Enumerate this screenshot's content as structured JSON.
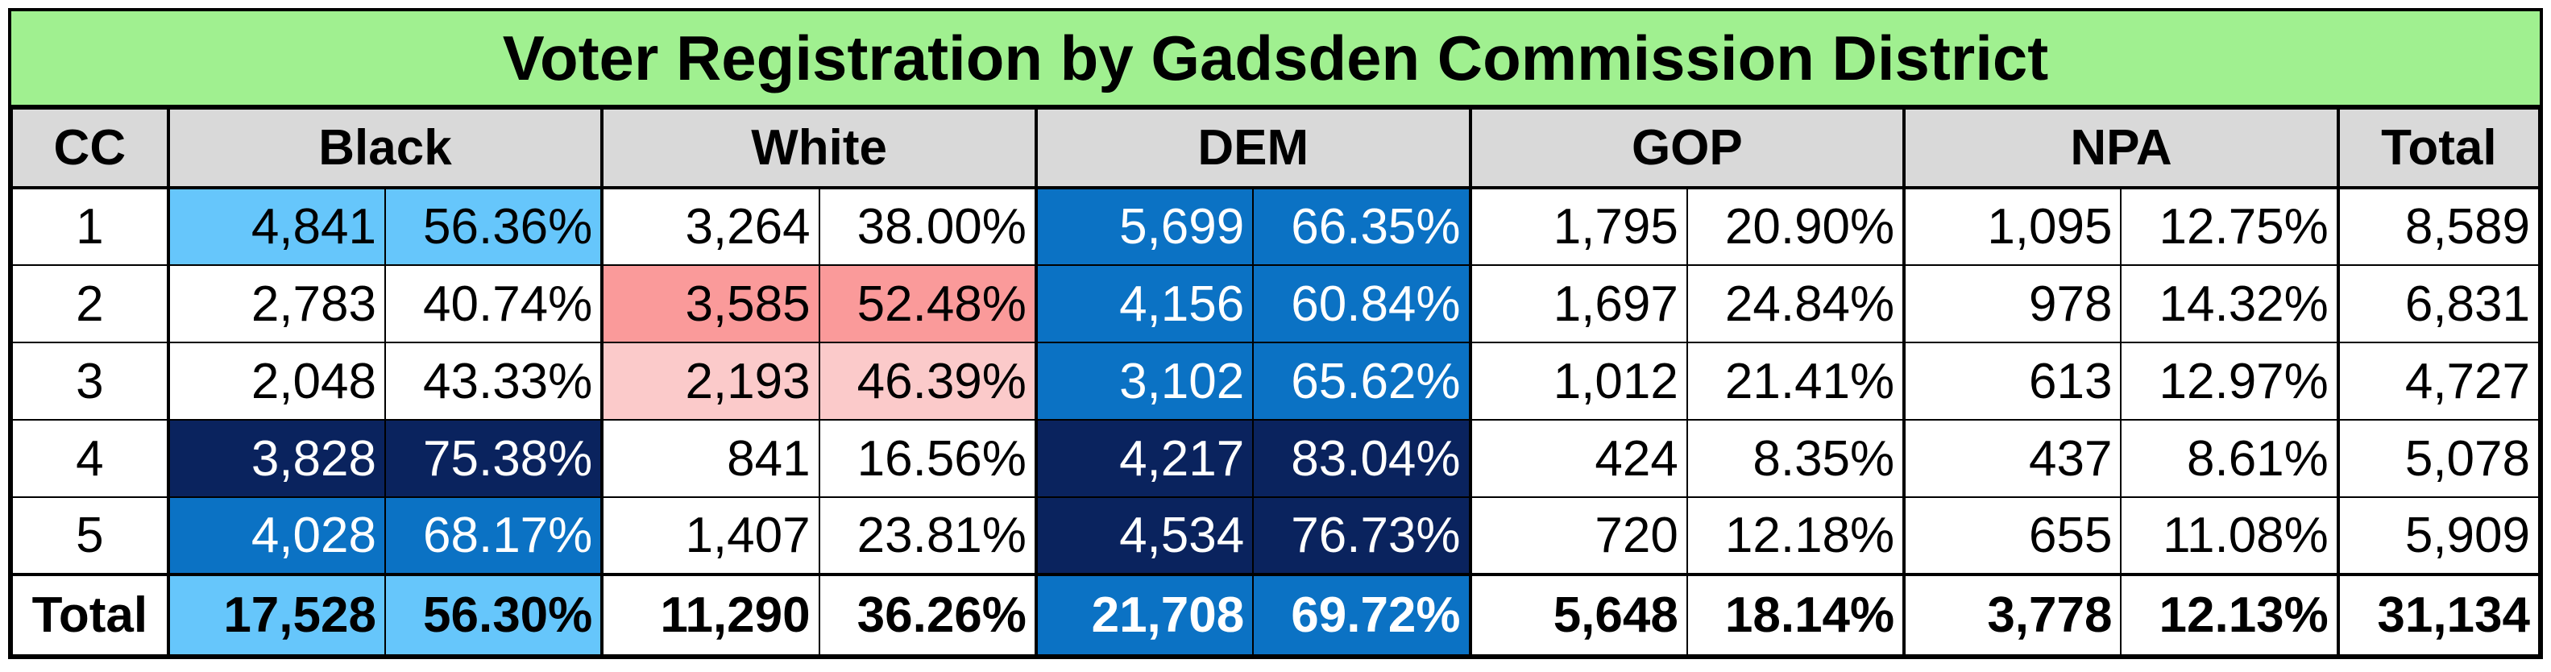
{
  "title": "Voter Registration by Gadsden Commission District",
  "headers": [
    "CC",
    "Black",
    "White",
    "DEM",
    "GOP",
    "NPA",
    "Total"
  ],
  "rows": [
    {
      "cc": "1",
      "black": "4,841",
      "black_pct": "56.36%",
      "white": "3,264",
      "white_pct": "38.00%",
      "dem": "5,699",
      "dem_pct": "66.35%",
      "gop": "1,795",
      "gop_pct": "20.90%",
      "npa": "1,095",
      "npa_pct": "12.75%",
      "total": "8,589"
    },
    {
      "cc": "2",
      "black": "2,783",
      "black_pct": "40.74%",
      "white": "3,585",
      "white_pct": "52.48%",
      "dem": "4,156",
      "dem_pct": "60.84%",
      "gop": "1,697",
      "gop_pct": "24.84%",
      "npa": "978",
      "npa_pct": "14.32%",
      "total": "6,831"
    },
    {
      "cc": "3",
      "black": "2,048",
      "black_pct": "43.33%",
      "white": "2,193",
      "white_pct": "46.39%",
      "dem": "3,102",
      "dem_pct": "65.62%",
      "gop": "1,012",
      "gop_pct": "21.41%",
      "npa": "613",
      "npa_pct": "12.97%",
      "total": "4,727"
    },
    {
      "cc": "4",
      "black": "3,828",
      "black_pct": "75.38%",
      "white": "841",
      "white_pct": "16.56%",
      "dem": "4,217",
      "dem_pct": "83.04%",
      "gop": "424",
      "gop_pct": "8.35%",
      "npa": "437",
      "npa_pct": "8.61%",
      "total": "5,078"
    },
    {
      "cc": "5",
      "black": "4,028",
      "black_pct": "68.17%",
      "white": "1,407",
      "white_pct": "23.81%",
      "dem": "4,534",
      "dem_pct": "76.73%",
      "gop": "720",
      "gop_pct": "12.18%",
      "npa": "655",
      "npa_pct": "11.08%",
      "total": "5,909"
    }
  ],
  "totals": {
    "cc": "Total",
    "black": "17,528",
    "black_pct": "56.30%",
    "white": "11,290",
    "white_pct": "36.26%",
    "dem": "21,708",
    "dem_pct": "69.72%",
    "gop": "5,648",
    "gop_pct": "18.14%",
    "npa": "3,778",
    "npa_pct": "12.13%",
    "total": "31,134"
  },
  "colors": {
    "title_bg": "#a0f090",
    "header_bg": "#d9d9d9",
    "light_blue": "#66c6fb",
    "mid_blue": "#0b72c4",
    "dark_blue": "#0a235e",
    "pink": "#fa9a9a",
    "light_pink": "#fbcaca"
  }
}
